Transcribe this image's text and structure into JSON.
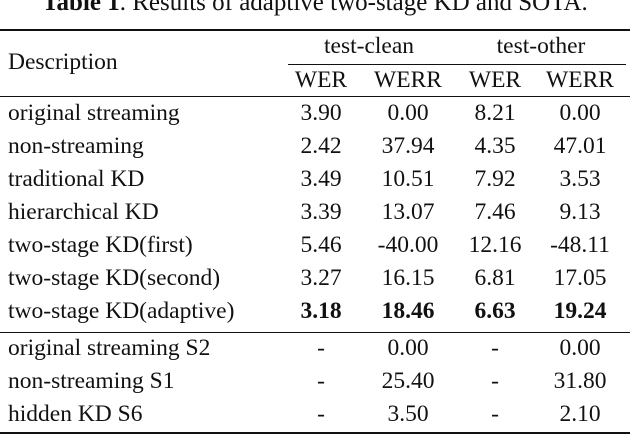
{
  "caption": {
    "label": "Table 1",
    "text": ". Results of adaptive two-stage KD and SOTA."
  },
  "header": {
    "description": "Description",
    "groups": [
      "test-clean",
      "test-other"
    ],
    "subcols": [
      "WER",
      "WERR",
      "WER",
      "WERR"
    ]
  },
  "rows_main": [
    {
      "desc": "original streaming",
      "values": [
        "3.90",
        "0.00",
        "8.21",
        "0.00"
      ],
      "bold": false
    },
    {
      "desc": "non-streaming",
      "values": [
        "2.42",
        "37.94",
        "4.35",
        "47.01"
      ],
      "bold": false
    },
    {
      "desc": "traditional KD",
      "values": [
        "3.49",
        "10.51",
        "7.92",
        "3.53"
      ],
      "bold": false
    },
    {
      "desc": "hierarchical KD",
      "values": [
        "3.39",
        "13.07",
        "7.46",
        "9.13"
      ],
      "bold": false
    },
    {
      "desc": "two-stage KD(first)",
      "values": [
        "5.46",
        "-40.00",
        "12.16",
        "-48.11"
      ],
      "bold": false
    },
    {
      "desc": "two-stage KD(second)",
      "values": [
        "3.27",
        "16.15",
        "6.81",
        "17.05"
      ],
      "bold": false
    },
    {
      "desc": "two-stage KD(adaptive)",
      "values": [
        "3.18",
        "18.46",
        "6.63",
        "19.24"
      ],
      "bold": true
    }
  ],
  "rows_sota": [
    {
      "desc": "original streaming S2",
      "values": [
        "-",
        "0.00",
        "-",
        "0.00"
      ]
    },
    {
      "desc": "non-streaming S1",
      "values": [
        "-",
        "25.40",
        "-",
        "31.80"
      ]
    },
    {
      "desc": "hidden KD S6",
      "values": [
        "-",
        "3.50",
        "-",
        "2.10"
      ]
    }
  ]
}
